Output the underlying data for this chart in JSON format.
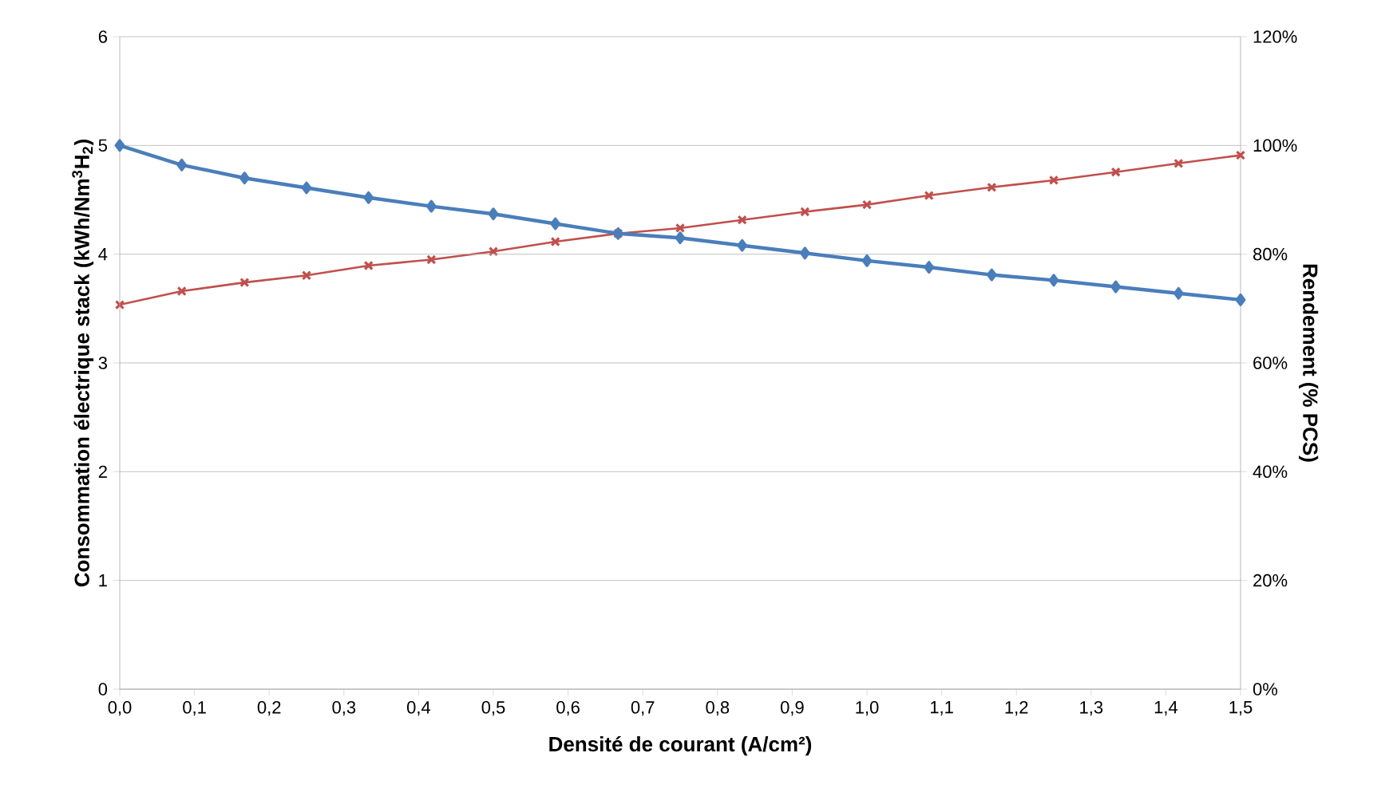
{
  "chart_data": {
    "type": "line",
    "xlabel": "Densité de courant (A/cm²)",
    "ylabel": "Consommation électrique stack (kWh/Nm$^{3}$H$_{2}$)",
    "y2label": "Rendement (% PCS)",
    "x": [
      0,
      0.083,
      0.167,
      0.25,
      0.333,
      0.417,
      0.5,
      0.583,
      0.667,
      0.75,
      0.833,
      0.917,
      1.0,
      1.083,
      1.167,
      1.25,
      1.333,
      1.417,
      1.5
    ],
    "series": [
      {
        "color": "#4a7ebb",
        "marker": "diamond",
        "values": [
          5.0,
          4.82,
          4.7,
          4.61,
          4.52,
          4.44,
          4.37,
          4.28,
          4.19,
          4.15,
          4.08,
          4.01,
          3.94,
          3.88,
          3.81,
          3.76,
          3.7,
          3.64,
          3.58
        ]
      },
      {
        "color": "#c0504d",
        "marker": "cross",
        "axis": "y2",
        "values": [
          70.7,
          73.2,
          74.8,
          76.1,
          77.9,
          79.0,
          80.5,
          82.3,
          83.8,
          84.8,
          86.3,
          87.8,
          89.1,
          90.8,
          92.3,
          93.6,
          95.1,
          96.7,
          98.2
        ]
      }
    ],
    "xlim": [
      0,
      1.5
    ],
    "xticks": [
      {
        "value": 0,
        "label": "0,0"
      },
      {
        "value": 0.1,
        "label": "0,1"
      },
      {
        "value": 0.2,
        "label": "0,2"
      },
      {
        "value": 0.3,
        "label": "0,3"
      },
      {
        "value": 0.4,
        "label": "0,4"
      },
      {
        "value": 0.5,
        "label": "0,5"
      },
      {
        "value": 0.6,
        "label": "0,6"
      },
      {
        "value": 0.7,
        "label": "0,7"
      },
      {
        "value": 0.8,
        "label": "0,8"
      },
      {
        "value": 0.9,
        "label": "0,9"
      },
      {
        "value": 1.0,
        "label": "1,0"
      },
      {
        "value": 1.1,
        "label": "1,1"
      },
      {
        "value": 1.2,
        "label": "1,2"
      },
      {
        "value": 1.3,
        "label": "1,3"
      },
      {
        "value": 1.4,
        "label": "1,4"
      },
      {
        "value": 1.5,
        "label": "1,5"
      }
    ],
    "ylim": [
      0,
      6
    ],
    "yticks": [
      0,
      1,
      2,
      3,
      4,
      5,
      6
    ],
    "y2lim": [
      0,
      120
    ],
    "y2ticks": [
      {
        "value": 0,
        "label": "0%"
      },
      {
        "value": 20,
        "label": "20%"
      },
      {
        "value": 40,
        "label": "40%"
      },
      {
        "value": 60,
        "label": "60%"
      },
      {
        "value": 80,
        "label": "80%"
      },
      {
        "value": 100,
        "label": "100%"
      },
      {
        "value": 120,
        "label": "120%"
      }
    ],
    "grid": "y",
    "line_style": "solid"
  }
}
